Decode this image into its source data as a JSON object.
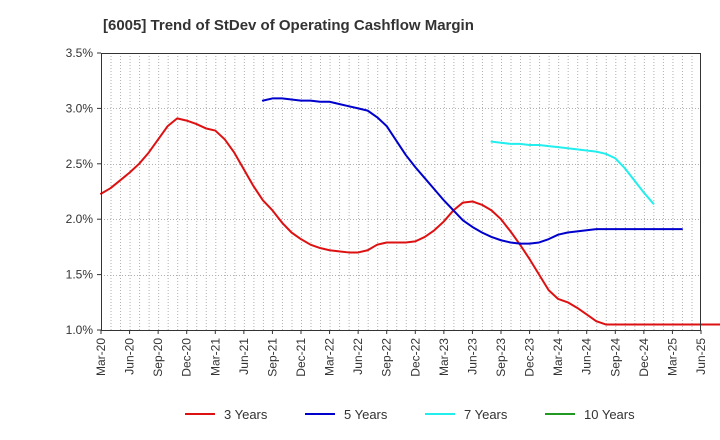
{
  "chart_data": {
    "type": "line",
    "title": "[6005]  Trend of StDev of Operating Cashflow Margin",
    "xlabel": "",
    "ylabel": "",
    "ylim": [
      1.0,
      3.5
    ],
    "yticks": [
      "1.0%",
      "1.5%",
      "2.0%",
      "2.5%",
      "3.0%",
      "3.5%"
    ],
    "ytick_values": [
      1.0,
      1.5,
      2.0,
      2.5,
      3.0,
      3.5
    ],
    "x_start": "2020-03",
    "xticks": [
      "Mar-20",
      "Jun-20",
      "Sep-20",
      "Dec-20",
      "Mar-21",
      "Jun-21",
      "Sep-21",
      "Dec-21",
      "Mar-22",
      "Jun-22",
      "Sep-22",
      "Dec-22",
      "Mar-23",
      "Jun-23",
      "Sep-23",
      "Dec-23",
      "Mar-24",
      "Jun-24",
      "Sep-24",
      "Dec-24",
      "Mar-25",
      "Jun-25"
    ],
    "grid": true,
    "legend_position": "bottom",
    "series": [
      {
        "name": "3 Years",
        "color": "#dd1111",
        "start": "2020-03",
        "values": [
          2.23,
          2.28,
          2.35,
          2.42,
          2.5,
          2.6,
          2.72,
          2.84,
          2.91,
          2.89,
          2.86,
          2.82,
          2.8,
          2.72,
          2.6,
          2.45,
          2.3,
          2.17,
          2.08,
          1.97,
          1.88,
          1.82,
          1.77,
          1.74,
          1.72,
          1.71,
          1.7,
          1.7,
          1.72,
          1.77,
          1.79,
          1.79,
          1.79,
          1.8,
          1.84,
          1.9,
          1.98,
          2.08,
          2.15,
          2.16,
          2.13,
          2.08,
          2.0,
          1.89,
          1.77,
          1.64,
          1.5,
          1.36,
          1.28,
          1.25,
          1.2,
          1.14,
          1.08,
          1.05,
          1.05,
          1.05,
          1.05,
          1.05,
          1.05,
          1.05,
          1.05,
          1.05,
          1.05,
          1.05,
          1.05,
          1.05,
          1.05
        ]
      },
      {
        "name": "5 Years",
        "color": "#0000cc",
        "start": "2021-08",
        "values": [
          3.07,
          3.09,
          3.09,
          3.08,
          3.07,
          3.07,
          3.06,
          3.06,
          3.04,
          3.02,
          3.0,
          2.98,
          2.92,
          2.84,
          2.71,
          2.58,
          2.47,
          2.37,
          2.27,
          2.17,
          2.08,
          1.99,
          1.93,
          1.88,
          1.84,
          1.81,
          1.79,
          1.78,
          1.78,
          1.79,
          1.82,
          1.86,
          1.88,
          1.89,
          1.9,
          1.91,
          1.91,
          1.91,
          1.91,
          1.91,
          1.91,
          1.91,
          1.91,
          1.91,
          1.91
        ]
      },
      {
        "name": "7 Years",
        "color": "#22eeee",
        "start": "2023-08",
        "values": [
          2.7,
          2.69,
          2.68,
          2.68,
          2.67,
          2.67,
          2.66,
          2.65,
          2.64,
          2.63,
          2.62,
          2.61,
          2.59,
          2.55,
          2.46,
          2.35,
          2.24,
          2.14
        ]
      },
      {
        "name": "10 Years",
        "color": "#229922",
        "start": "2025-03",
        "values": []
      }
    ]
  }
}
